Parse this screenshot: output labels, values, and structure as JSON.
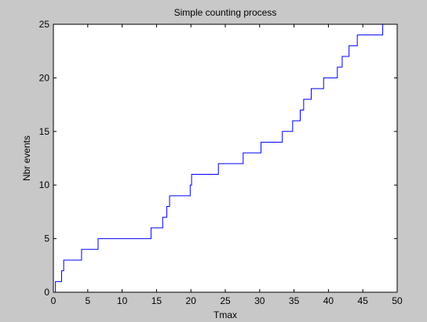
{
  "chart_data": {
    "type": "line",
    "step": true,
    "title": "Simple counting process",
    "xlabel": "Tmax",
    "ylabel": "Nbr events",
    "xlim": [
      0,
      50
    ],
    "ylim": [
      0,
      25
    ],
    "xticks": [
      0,
      5,
      10,
      15,
      20,
      25,
      30,
      35,
      40,
      45,
      50
    ],
    "yticks": [
      0,
      5,
      10,
      15,
      20,
      25
    ],
    "grid": false,
    "colors": {
      "figure_bg": "#c8c8c8",
      "axes_bg": "#ffffff",
      "line": "#0000ff",
      "axis": "#000000"
    },
    "series": [
      {
        "x": [
          0,
          0.3,
          1.2,
          1.5,
          4.1,
          6.5,
          14.2,
          15.9,
          16.5,
          16.9,
          17.1,
          19.9,
          20.1,
          24.0,
          27.6,
          30.2,
          33.3,
          34.8,
          35.9,
          36.4,
          37.5,
          39.3,
          41.3,
          42.0,
          43.0,
          44.2,
          47.9
        ],
        "y": [
          0,
          1,
          2,
          3,
          4,
          5,
          6,
          7,
          8,
          9,
          9,
          10,
          11,
          12,
          13,
          14,
          15,
          16,
          17,
          18,
          19,
          20,
          21,
          22,
          23,
          24,
          25
        ]
      }
    ]
  }
}
